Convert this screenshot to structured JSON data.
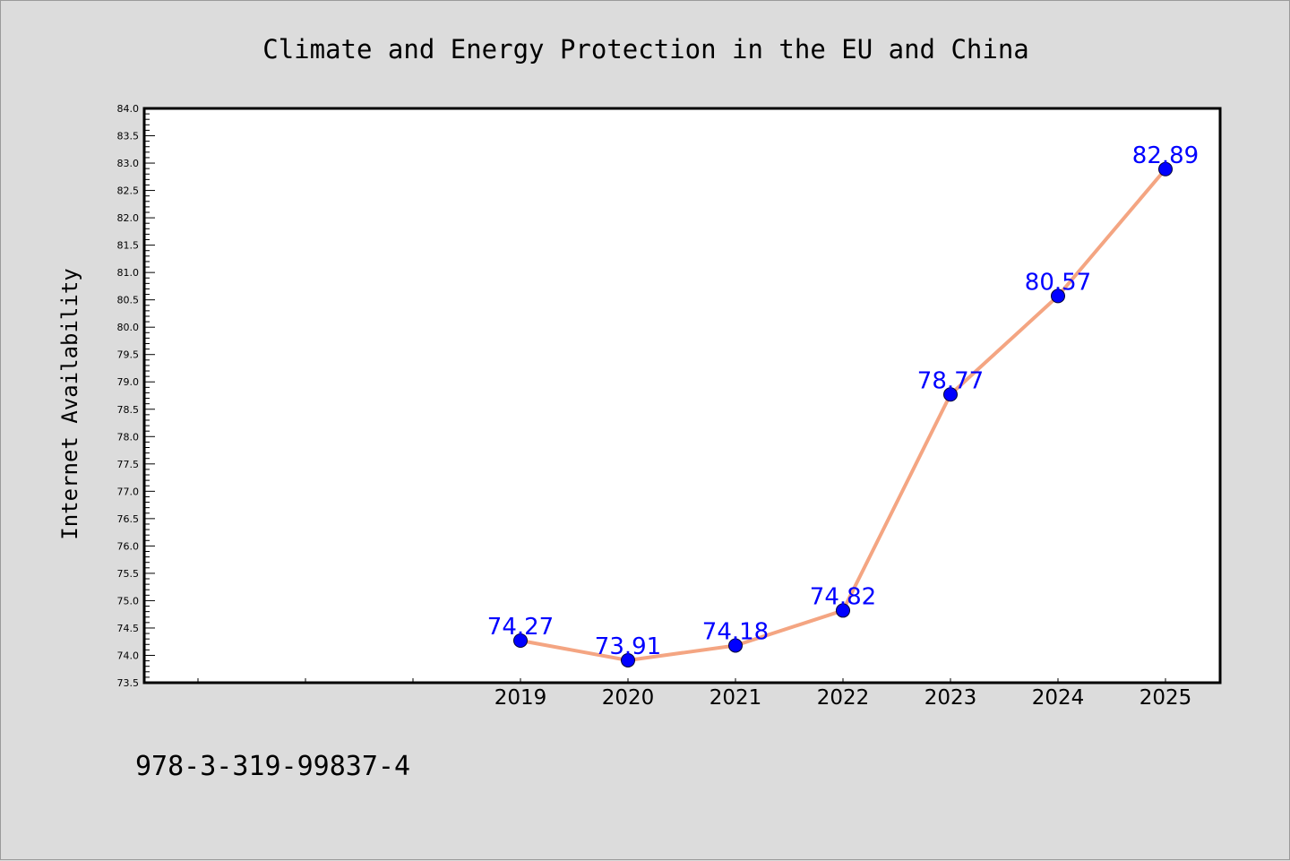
{
  "chart_data": {
    "type": "line",
    "title": "Climate and Energy Protection in the EU and China",
    "xlabel": "",
    "ylabel": "Internet Availability",
    "x": [
      "2019",
      "2020",
      "2021",
      "2022",
      "2023",
      "2024",
      "2025"
    ],
    "series": [
      {
        "values": [
          74.27,
          73.91,
          74.18,
          74.82,
          78.77,
          80.57,
          82.89
        ]
      }
    ],
    "data_labels": [
      "74.27",
      "73.91",
      "74.18",
      "74.82",
      "78.77",
      "80.57",
      "82.89"
    ],
    "ylim": [
      73.5,
      84.0
    ],
    "yticks": [
      "73.5",
      "74.0",
      "74.5",
      "75.0",
      "75.5",
      "76.0",
      "76.5",
      "77.0",
      "77.5",
      "78.0",
      "78.5",
      "79.0",
      "79.5",
      "80.0",
      "80.5",
      "81.0",
      "81.5",
      "82.0",
      "82.5",
      "83.0",
      "83.5",
      "84.0"
    ],
    "x_slots_before_data": 3,
    "grid": false,
    "colors": {
      "line": "#f4a582",
      "marker": "#0000ff",
      "label": "#0000ff",
      "background": "#dcdcdc",
      "plot_background": "#ffffff"
    }
  },
  "footer": {
    "text": "978-3-319-99837-4"
  }
}
